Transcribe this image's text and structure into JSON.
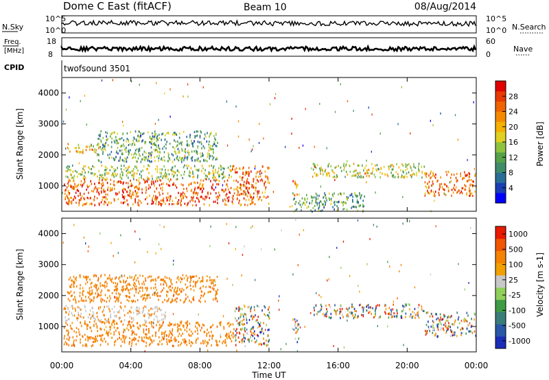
{
  "header": {
    "station": "Dome C East (fitACF)",
    "beam": "Beam 10",
    "date": "08/Aug/2014"
  },
  "top_panels": {
    "nsky_label": "N.Sky",
    "nsky_ticks": [
      "10^5",
      "10^0"
    ],
    "nsearch_label": "N.Search",
    "nsearch_ticks": [
      "10^5",
      "10^0"
    ],
    "freq_label_line1": "Freq.",
    "freq_label_line2": "[MHz]",
    "freq_ticks": [
      "18",
      "8"
    ],
    "nave_label": "Nave",
    "nave_ticks": [
      "60",
      "0"
    ],
    "cpid_label": "CPID",
    "cpid_value": "twofsound 3501"
  },
  "colors": {
    "power": [
      "#0000ff",
      "#1a3fb5",
      "#2a6e95",
      "#3f8b6a",
      "#55a24a",
      "#8fc23f",
      "#e0d020",
      "#f5b000",
      "#f58a00",
      "#f06400",
      "#e83a00",
      "#e00000"
    ],
    "velocity": [
      "#1b2db8",
      "#2a58a8",
      "#3a7c7a",
      "#3f9b45",
      "#8fd05a",
      "#c8c8c8",
      "#f2a000",
      "#f58200",
      "#f25500",
      "#e81a00"
    ]
  },
  "chart_data": [
    {
      "type": "heatmap",
      "panel": "power",
      "ylabel": "Slant Range [km]",
      "xlabel": "",
      "x_range_hours": [
        0,
        24
      ],
      "ylim": [
        180,
        4500
      ],
      "yticks": [
        1000,
        2000,
        3000,
        4000
      ],
      "colorbar": {
        "label": "Power [dB]",
        "range": [
          0,
          32
        ],
        "ticks": [
          4,
          8,
          12,
          16,
          20,
          24,
          28
        ]
      },
      "echo_regions": [
        {
          "t0": 0.1,
          "t1": 9.8,
          "r0": 400,
          "r1": 1250,
          "level": 0.85
        },
        {
          "t0": 0.1,
          "t1": 9.8,
          "r0": 1250,
          "r1": 1700,
          "level": 0.45
        },
        {
          "t0": 0.3,
          "t1": 2.5,
          "r0": 2100,
          "r1": 2400,
          "level": 0.6
        },
        {
          "t0": 2.0,
          "t1": 9.0,
          "r0": 1800,
          "r1": 2800,
          "level": 0.35
        },
        {
          "t0": 9.8,
          "t1": 12.0,
          "r0": 400,
          "r1": 1700,
          "level": 0.8
        },
        {
          "t0": 13.3,
          "t1": 13.7,
          "r0": 700,
          "r1": 1200,
          "level": 0.75
        },
        {
          "t0": 13.3,
          "t1": 17.5,
          "r0": 200,
          "r1": 800,
          "level": 0.35
        },
        {
          "t0": 14.5,
          "t1": 21.0,
          "r0": 1300,
          "r1": 1750,
          "level": 0.5
        },
        {
          "t0": 21.0,
          "t1": 24.0,
          "r0": 700,
          "r1": 1500,
          "level": 0.8
        }
      ]
    },
    {
      "type": "heatmap",
      "panel": "velocity",
      "ylabel": "Slant Range [km]",
      "xlabel": "Time UT",
      "x_range_hours": [
        0,
        24
      ],
      "xticks": [
        "00:00",
        "04:00",
        "08:00",
        "12:00",
        "16:00",
        "20:00",
        "00:00"
      ],
      "ylim": [
        180,
        4500
      ],
      "yticks": [
        1000,
        2000,
        3000,
        4000
      ],
      "colorbar": {
        "label": "Velocity [m s-1]",
        "ticks": [
          "1000",
          "500",
          "100",
          "25",
          "-25",
          "-100",
          "-500",
          "-1000"
        ]
      },
      "echo_regions": [
        {
          "t0": 0.1,
          "t1": 10.0,
          "r0": 400,
          "r1": 1200,
          "level": "orange"
        },
        {
          "t0": 0.1,
          "t1": 6.0,
          "r0": 1200,
          "r1": 1700,
          "level": "grey"
        },
        {
          "t0": 0.3,
          "t1": 9.0,
          "r0": 1800,
          "r1": 2700,
          "level": "orange"
        },
        {
          "t0": 10.0,
          "t1": 12.0,
          "r0": 400,
          "r1": 1700,
          "level": "mixed"
        },
        {
          "t0": 13.3,
          "t1": 13.7,
          "r0": 500,
          "r1": 1300,
          "level": "mixed"
        },
        {
          "t0": 14.5,
          "t1": 21.0,
          "r0": 1300,
          "r1": 1750,
          "level": "mixed"
        },
        {
          "t0": 21.0,
          "t1": 24.0,
          "r0": 700,
          "r1": 1500,
          "level": "mixed"
        }
      ]
    }
  ]
}
